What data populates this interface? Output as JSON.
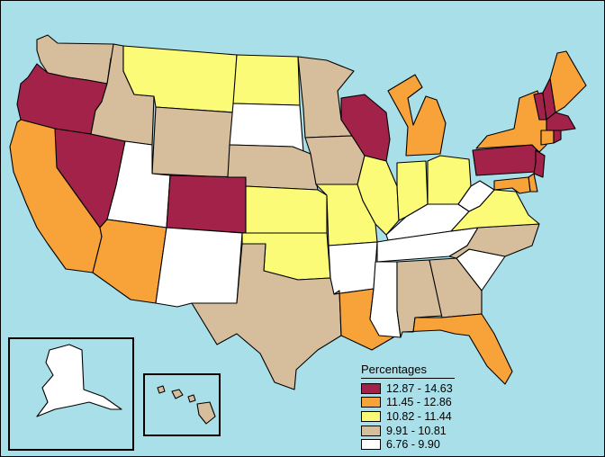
{
  "legend": {
    "title": "Percentages",
    "ranges": [
      {
        "label": "12.87 - 14.63",
        "color": "#a3224a"
      },
      {
        "label": "11.45 - 12.86",
        "color": "#f8a23a"
      },
      {
        "label": "10.82 - 11.44",
        "color": "#fbfb78"
      },
      {
        "label": "9.91 - 10.81",
        "color": "#d6be9c"
      },
      {
        "label": "6.76 - 9.90",
        "color": "#ffffff"
      }
    ]
  },
  "ocean_color": "#a9dfe8",
  "states": [
    {
      "name": "WA",
      "class": "9.91 - 10.81"
    },
    {
      "name": "OR",
      "class": "12.87 - 14.63"
    },
    {
      "name": "CA",
      "class": "11.45 - 12.86"
    },
    {
      "name": "NV",
      "class": "12.87 - 14.63"
    },
    {
      "name": "ID",
      "class": "9.91 - 10.81"
    },
    {
      "name": "MT",
      "class": "10.82 - 11.44"
    },
    {
      "name": "WY",
      "class": "9.91 - 10.81"
    },
    {
      "name": "UT",
      "class": "6.76 - 9.90"
    },
    {
      "name": "AZ",
      "class": "11.45 - 12.86"
    },
    {
      "name": "CO",
      "class": "12.87 - 14.63"
    },
    {
      "name": "NM",
      "class": "6.76 - 9.90"
    },
    {
      "name": "ND",
      "class": "10.82 - 11.44"
    },
    {
      "name": "SD",
      "class": "6.76 - 9.90"
    },
    {
      "name": "NE",
      "class": "9.91 - 10.81"
    },
    {
      "name": "KS",
      "class": "10.82 - 11.44"
    },
    {
      "name": "OK",
      "class": "10.82 - 11.44"
    },
    {
      "name": "TX",
      "class": "9.91 - 10.81"
    },
    {
      "name": "MN",
      "class": "9.91 - 10.81"
    },
    {
      "name": "IA",
      "class": "9.91 - 10.81"
    },
    {
      "name": "MO",
      "class": "10.82 - 11.44"
    },
    {
      "name": "AR",
      "class": "6.76 - 9.90"
    },
    {
      "name": "LA",
      "class": "11.45 - 12.86"
    },
    {
      "name": "WI",
      "class": "12.87 - 14.63"
    },
    {
      "name": "IL",
      "class": "10.82 - 11.44"
    },
    {
      "name": "MI",
      "class": "11.45 - 12.86"
    },
    {
      "name": "IN",
      "class": "10.82 - 11.44"
    },
    {
      "name": "OH",
      "class": "10.82 - 11.44"
    },
    {
      "name": "KY",
      "class": "6.76 - 9.90"
    },
    {
      "name": "TN",
      "class": "6.76 - 9.90"
    },
    {
      "name": "MS",
      "class": "6.76 - 9.90"
    },
    {
      "name": "AL",
      "class": "9.91 - 10.81"
    },
    {
      "name": "GA",
      "class": "9.91 - 10.81"
    },
    {
      "name": "FL",
      "class": "11.45 - 12.86"
    },
    {
      "name": "SC",
      "class": "6.76 - 9.90"
    },
    {
      "name": "NC",
      "class": "9.91 - 10.81"
    },
    {
      "name": "VA",
      "class": "10.82 - 11.44"
    },
    {
      "name": "WV",
      "class": "6.76 - 9.90"
    },
    {
      "name": "PA",
      "class": "12.87 - 14.63"
    },
    {
      "name": "NY",
      "class": "11.45 - 12.86"
    },
    {
      "name": "VT",
      "class": "12.87 - 14.63"
    },
    {
      "name": "NH",
      "class": "12.87 - 14.63"
    },
    {
      "name": "ME",
      "class": "11.45 - 12.86"
    },
    {
      "name": "MA",
      "class": "12.87 - 14.63"
    },
    {
      "name": "CT",
      "class": "11.45 - 12.86"
    },
    {
      "name": "RI",
      "class": "12.87 - 14.63"
    },
    {
      "name": "NJ",
      "class": "12.87 - 14.63"
    },
    {
      "name": "DE",
      "class": "11.45 - 12.86"
    },
    {
      "name": "MD",
      "class": "11.45 - 12.86"
    },
    {
      "name": "AK",
      "class": "6.76 - 9.90"
    },
    {
      "name": "HI",
      "class": "9.91 - 10.81"
    }
  ]
}
